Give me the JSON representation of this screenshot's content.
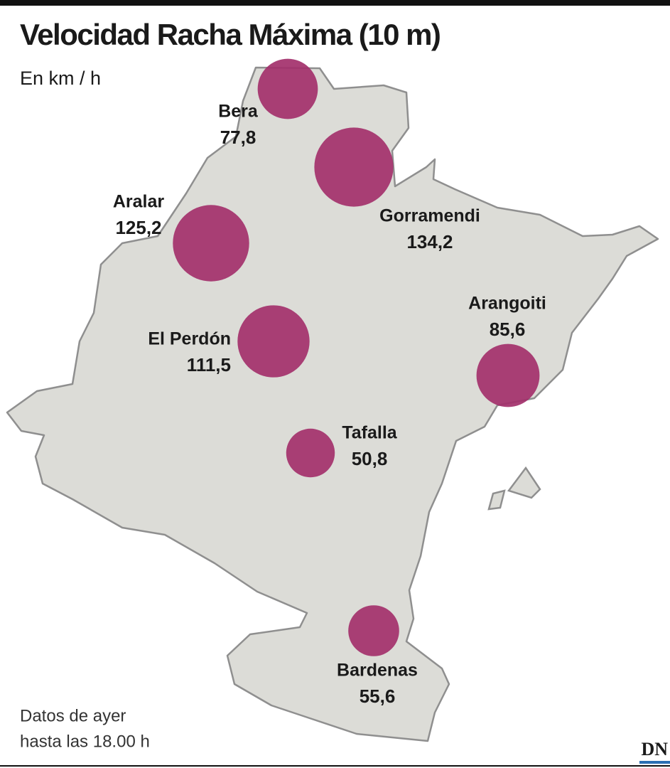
{
  "header": {
    "title": "Velocidad Racha Máxima (10 m)",
    "subtitle": "En km / h"
  },
  "map": {
    "stations": {
      "names": [
        "Bera",
        "Gorramendi",
        "Aralar",
        "El Perdón",
        "Arangoiti",
        "Tafalla",
        "Bardenas"
      ],
      "values": [
        77.8,
        134.2,
        125.2,
        111.5,
        85.6,
        50.8,
        55.6
      ],
      "value_labels": [
        "77,8",
        "134,2",
        "125,2",
        "111,5",
        "85,6",
        "50,8",
        "55,6"
      ],
      "color": "#a3306b"
    }
  },
  "footer": {
    "note": [
      "Datos de ayer",
      "hasta las 18.00 h"
    ],
    "logo": "DN"
  }
}
